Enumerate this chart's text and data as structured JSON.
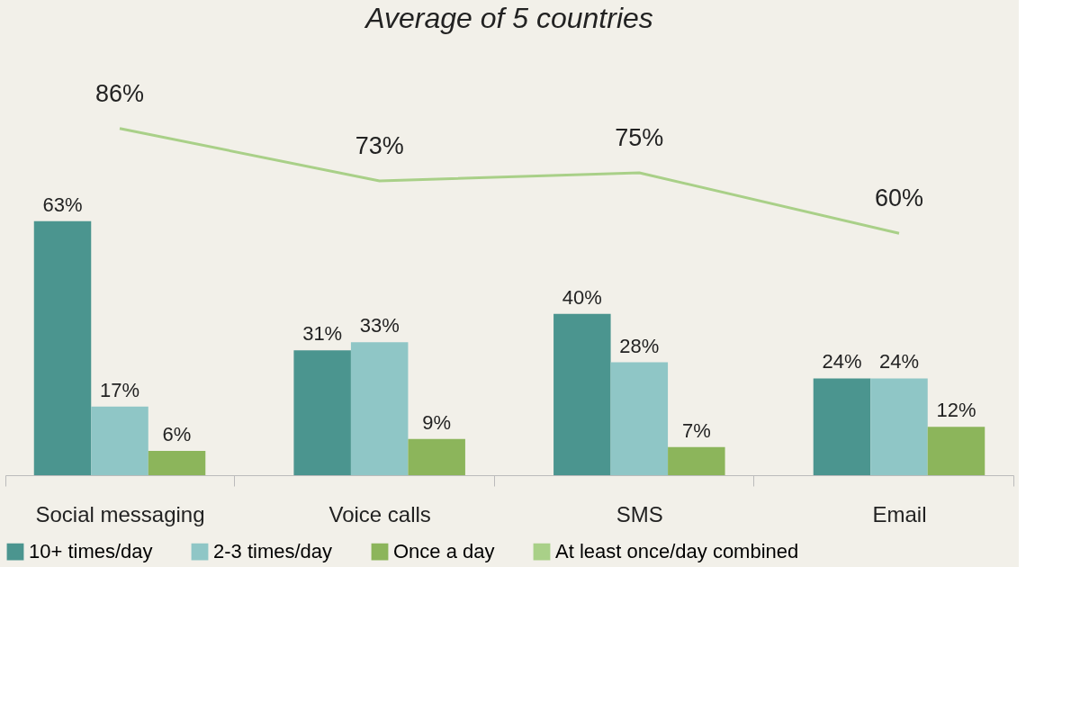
{
  "chart_data": {
    "type": "bar",
    "title": "Average of 5 countries",
    "categories": [
      "Social messaging",
      "Voice calls",
      "SMS",
      "Email"
    ],
    "series": [
      {
        "name": "10+ times/day",
        "color": "#4b958f",
        "values": [
          63,
          31,
          40,
          24
        ],
        "value_labels": [
          "63%",
          "31%",
          "40%",
          "24%"
        ]
      },
      {
        "name": "2-3 times/day",
        "color": "#8fc6c6",
        "values": [
          17,
          33,
          28,
          24
        ],
        "value_labels": [
          "17%",
          "33%",
          "28%",
          "24%"
        ]
      },
      {
        "name": "Once a day",
        "color": "#8cb55b",
        "values": [
          6,
          9,
          7,
          12
        ],
        "value_labels": [
          "6%",
          "9%",
          "7%",
          "12%"
        ]
      },
      {
        "name": "At least once/day combined",
        "type": "line",
        "color": "#a9d088",
        "values": [
          86,
          73,
          75,
          60
        ],
        "value_labels": [
          "86%",
          "73%",
          "75%",
          "60%"
        ]
      }
    ],
    "legend": "bottom"
  }
}
